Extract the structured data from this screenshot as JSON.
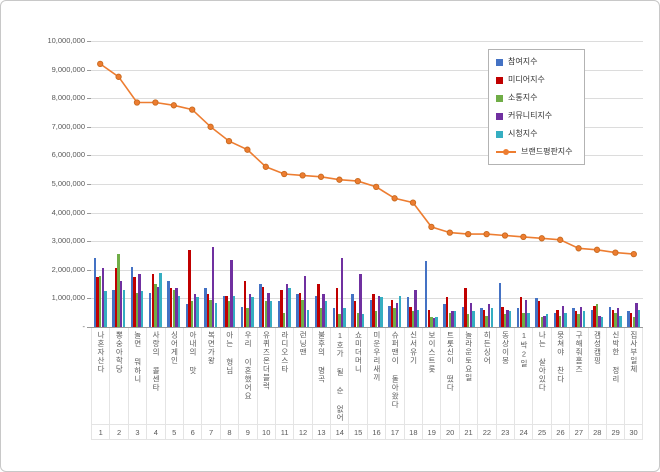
{
  "chart_data": {
    "type": "bar",
    "title": "",
    "grid": true,
    "legend_position": "top-right",
    "ylim": [
      0,
      10000000
    ],
    "ytick_step": 1000000,
    "ytick_labels": [
      "-",
      "1,000,000",
      "2,000,000",
      "3,000,000",
      "4,000,000",
      "5,000,000",
      "6,000,000",
      "7,000,000",
      "8,000,000",
      "9,000,000",
      "10,000,000"
    ],
    "categories": [
      "나혼자산다",
      "뽕숭아학당",
      "놀면 뭐하니",
      "사랑의 콜센타",
      "싱어게인",
      "아내의 맛",
      "복면가왕",
      "아는 형님",
      "우리 이혼했어요",
      "유퀴즈온더블럭",
      "라디오스타",
      "런닝맨",
      "불후의 명곡",
      "1호가 될 순 없어",
      "쇼미더머니",
      "미운우리새끼",
      "슈퍼맨이 돌아왔다",
      "신서유기",
      "보이스트롯",
      "트롯신이 떴다",
      "놀라운토요일",
      "히든싱어",
      "동상이몽",
      "1박2일",
      "나는 살아있다",
      "뭉쳐야 찬다",
      "구해줘홈즈",
      "갬성캠핑",
      "신박한 정리",
      "집사부일체"
    ],
    "category_numbers": [
      "1",
      "2",
      "3",
      "4",
      "5",
      "6",
      "7",
      "8",
      "9",
      "10",
      "11",
      "12",
      "13",
      "14",
      "15",
      "16",
      "17",
      "18",
      "19",
      "20",
      "21",
      "22",
      "23",
      "24",
      "25",
      "26",
      "27",
      "28",
      "29",
      "30"
    ],
    "bar_series": [
      {
        "name": "참여지수",
        "color": "#4472C4",
        "values": [
          2400000,
          1300000,
          2100000,
          1200000,
          1600000,
          800000,
          1350000,
          1100000,
          700000,
          1500000,
          900000,
          1150000,
          1100000,
          650000,
          1150000,
          950000,
          750000,
          1050000,
          2300000,
          800000,
          700000,
          650000,
          1550000,
          650000,
          1000000,
          500000,
          650000,
          600000,
          700000,
          550000
        ]
      },
      {
        "name": "미디어지수",
        "color": "#C00000",
        "values": [
          1750000,
          2050000,
          1750000,
          1850000,
          1350000,
          2700000,
          1150000,
          1100000,
          1600000,
          1400000,
          1300000,
          1200000,
          1500000,
          1350000,
          900000,
          1150000,
          950000,
          700000,
          600000,
          1050000,
          1350000,
          600000,
          700000,
          1050000,
          900000,
          600000,
          550000,
          750000,
          600000,
          500000
        ]
      },
      {
        "name": "소통지수",
        "color": "#70AD47",
        "values": [
          1800000,
          2550000,
          1200000,
          1500000,
          1300000,
          900000,
          950000,
          900000,
          650000,
          900000,
          500000,
          950000,
          650000,
          450000,
          500000,
          550000,
          650000,
          550000,
          350000,
          500000,
          450000,
          400000,
          450000,
          500000,
          350000,
          400000,
          450000,
          800000,
          500000,
          350000
        ]
      },
      {
        "name": "커뮤니티지수",
        "color": "#7030A0",
        "values": [
          2050000,
          1600000,
          1850000,
          1400000,
          1350000,
          1150000,
          2800000,
          2350000,
          1150000,
          1200000,
          1500000,
          1800000,
          1150000,
          2400000,
          1850000,
          1100000,
          850000,
          1300000,
          300000,
          550000,
          850000,
          800000,
          600000,
          950000,
          400000,
          750000,
          700000,
          400000,
          650000,
          850000
        ]
      },
      {
        "name": "시청지수",
        "color": "#35AEC1",
        "values": [
          1250000,
          1300000,
          1250000,
          1900000,
          1100000,
          1050000,
          850000,
          1100000,
          1050000,
          900000,
          1350000,
          600000,
          900000,
          650000,
          450000,
          1050000,
          1100000,
          600000,
          350000,
          550000,
          550000,
          650000,
          550000,
          500000,
          450000,
          500000,
          550000,
          350000,
          400000,
          600000
        ]
      }
    ],
    "line_series": {
      "name": "브랜드평판지수",
      "color": "#ED7D31",
      "marker_stroke": "#C96A1E",
      "values": [
        9200000,
        8750000,
        7850000,
        7850000,
        7750000,
        7600000,
        7000000,
        6500000,
        6200000,
        5600000,
        5350000,
        5300000,
        5250000,
        5150000,
        5100000,
        4900000,
        4500000,
        4350000,
        3500000,
        3300000,
        3250000,
        3250000,
        3200000,
        3150000,
        3100000,
        3050000,
        2750000,
        2700000,
        2600000,
        2550000
      ]
    }
  }
}
